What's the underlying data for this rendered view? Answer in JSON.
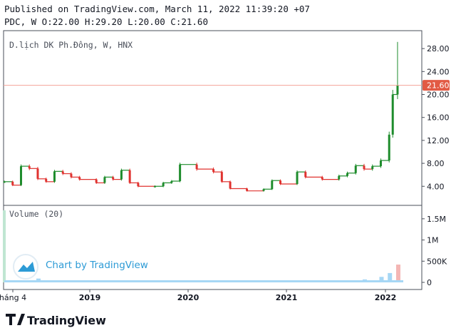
{
  "header": {
    "published": "Published on TradingView.com, March 11, 2022 11:39:20 +07",
    "ohlc": "PDC, W O:22.00 H:29.20 L:20.00 C:21.60"
  },
  "symbol_label": "D.lịch DK Ph.Đông, W, HNX",
  "volume_label": "Volume (20)",
  "watermark": "Chart by TradingView",
  "brand": "TradingView",
  "last_price_label": "21.60",
  "colors": {
    "up": "#26a69a",
    "down": "#ef5350",
    "candle_up": "#1e8c2c",
    "candle_down": "#e0322f",
    "volume": "#a6d7f5",
    "price_line": "#f4a39a",
    "badge": "#e25a44",
    "axis": "#4a4f5a"
  },
  "chart_data": [
    {
      "type": "candlestick",
      "ticker": "PDC",
      "interval": "W",
      "exchange": "HNX",
      "y_axis": {
        "ticks": [
          "4.00",
          "8.00",
          "12.00",
          "16.00",
          "20.00",
          "24.00",
          "28.00"
        ],
        "range": [
          0.8,
          31.0
        ]
      },
      "x_axis": {
        "labels": [
          "háng 4",
          "2019",
          "2020",
          "2021",
          "2022"
        ]
      },
      "last_close": 21.6,
      "series": [
        {
          "date": "2018-04",
          "close": 4.8
        },
        {
          "date": "2018-05",
          "close": 4.2
        },
        {
          "date": "2018-06",
          "close": 7.5
        },
        {
          "date": "2018-07",
          "close": 7.1
        },
        {
          "date": "2018-08",
          "close": 5.3
        },
        {
          "date": "2018-09",
          "close": 4.8
        },
        {
          "date": "2018-10",
          "close": 6.6
        },
        {
          "date": "2018-11",
          "close": 6.2
        },
        {
          "date": "2018-12",
          "close": 5.6
        },
        {
          "date": "2019-01",
          "close": 5.2
        },
        {
          "date": "2019-03",
          "close": 4.6
        },
        {
          "date": "2019-04",
          "close": 5.6
        },
        {
          "date": "2019-05",
          "close": 5.2
        },
        {
          "date": "2019-06",
          "close": 6.8
        },
        {
          "date": "2019-07",
          "close": 4.6
        },
        {
          "date": "2019-08",
          "close": 4.0
        },
        {
          "date": "2019-10",
          "close": 4.0
        },
        {
          "date": "2019-11",
          "close": 4.6
        },
        {
          "date": "2019-12",
          "close": 4.9
        },
        {
          "date": "2020-01",
          "close": 7.8
        },
        {
          "date": "2020-03",
          "close": 7.0
        },
        {
          "date": "2020-05",
          "close": 6.5
        },
        {
          "date": "2020-06",
          "close": 4.8
        },
        {
          "date": "2020-07",
          "close": 3.6
        },
        {
          "date": "2020-09",
          "close": 3.2
        },
        {
          "date": "2020-11",
          "close": 3.5
        },
        {
          "date": "2020-12",
          "close": 5.0
        },
        {
          "date": "2021-01",
          "close": 4.4
        },
        {
          "date": "2021-03",
          "close": 6.5
        },
        {
          "date": "2021-04",
          "close": 5.6
        },
        {
          "date": "2021-06",
          "close": 5.2
        },
        {
          "date": "2021-08",
          "close": 5.8
        },
        {
          "date": "2021-09",
          "close": 6.3
        },
        {
          "date": "2021-10",
          "close": 7.6
        },
        {
          "date": "2021-11",
          "close": 7.0
        },
        {
          "date": "2021-12",
          "close": 7.5
        },
        {
          "date": "2022-01",
          "close": 8.5
        },
        {
          "date": "2022-02",
          "close": 13.0
        },
        {
          "date": "2022-02",
          "close": 20.0
        },
        {
          "date": "2022-03",
          "close": 21.6
        }
      ]
    },
    {
      "type": "bar",
      "name": "Volume (20)",
      "y_axis": {
        "ticks": [
          "0",
          "500K",
          "1M",
          "1.5M"
        ],
        "range": [
          0,
          1800000
        ]
      },
      "series": [
        {
          "date": "2018-04",
          "value": 1700000
        },
        {
          "date": "2018-06",
          "value": 40000
        },
        {
          "date": "2018-08",
          "value": 90000
        },
        {
          "date": "2018-10",
          "value": 30000
        },
        {
          "date": "2019-06",
          "value": 25000
        },
        {
          "date": "2020-01",
          "value": 20000
        },
        {
          "date": "2020-07",
          "value": 20000
        },
        {
          "date": "2021-01",
          "value": 30000
        },
        {
          "date": "2021-06",
          "value": 40000
        },
        {
          "date": "2021-11",
          "value": 70000
        },
        {
          "date": "2022-01",
          "value": 130000
        },
        {
          "date": "2022-02",
          "value": 220000
        },
        {
          "date": "2022-03",
          "value": 420000
        }
      ]
    }
  ]
}
